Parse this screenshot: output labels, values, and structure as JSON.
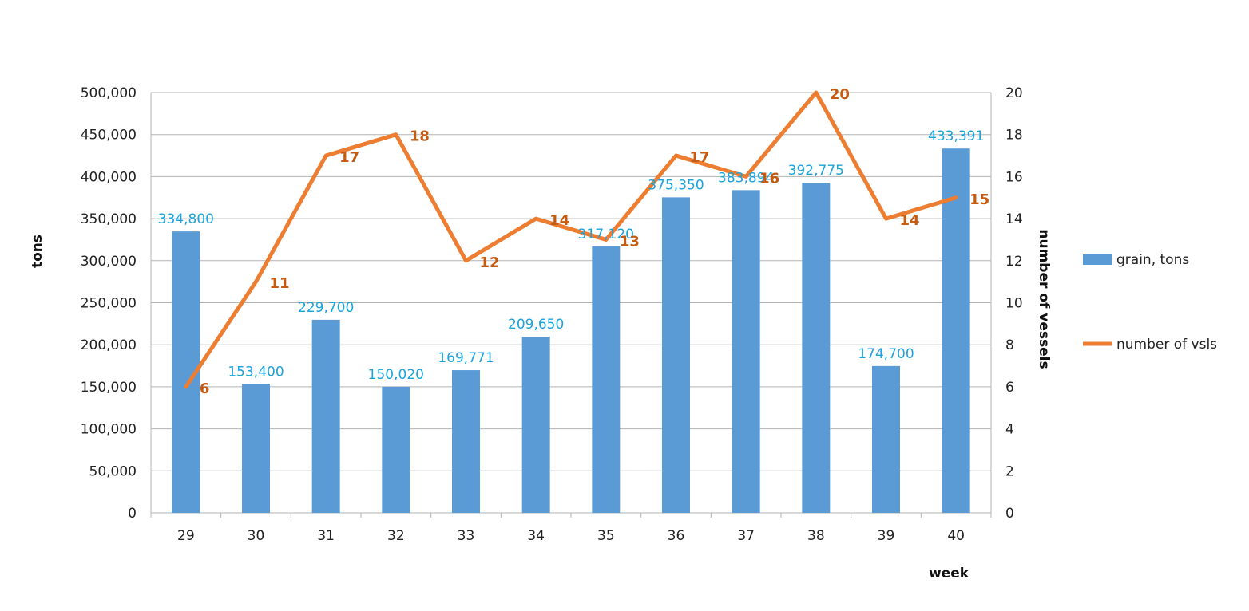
{
  "chart_data": {
    "type": "bar+line",
    "title": "",
    "categories": [
      "29",
      "30",
      "31",
      "32",
      "33",
      "34",
      "35",
      "36",
      "37",
      "38",
      "39",
      "40"
    ],
    "series": [
      {
        "name": "grain, tons",
        "type": "bar",
        "axis": "left",
        "color": "#5b9bd5",
        "label_color": "#1aa3dd",
        "values": [
          334800,
          153400,
          229700,
          150020,
          169771,
          209650,
          317120,
          375350,
          383894,
          392775,
          174700,
          433391
        ],
        "labels": [
          "334,800",
          "153,400",
          "229,700",
          "150,020",
          "169,771",
          "209,650",
          "317,120",
          "375,350",
          "383,894",
          "392,775",
          "174,700",
          "433,391"
        ]
      },
      {
        "name": "number of vsls",
        "type": "line",
        "axis": "right",
        "color": "#ed7d31",
        "label_color": "#c55a11",
        "values": [
          6,
          11,
          17,
          18,
          12,
          14,
          13,
          17,
          16,
          20,
          14,
          15
        ],
        "labels": [
          "6",
          "11",
          "17",
          "18",
          "12",
          "14",
          "13",
          "17",
          "16",
          "20",
          "14",
          "15"
        ]
      }
    ],
    "xlabel": "week",
    "ylabel": "tons",
    "y2label": "number of vessels",
    "ylim": [
      0,
      500000
    ],
    "y2lim": [
      0,
      20
    ],
    "yticks": [
      "0",
      "50,000",
      "100,000",
      "150,000",
      "200,000",
      "250,000",
      "300,000",
      "350,000",
      "400,000",
      "450,000",
      "500,000"
    ],
    "y2ticks": [
      "0",
      "2",
      "4",
      "6",
      "8",
      "10",
      "12",
      "14",
      "16",
      "18",
      "20"
    ],
    "grid": true,
    "legend": "right"
  }
}
